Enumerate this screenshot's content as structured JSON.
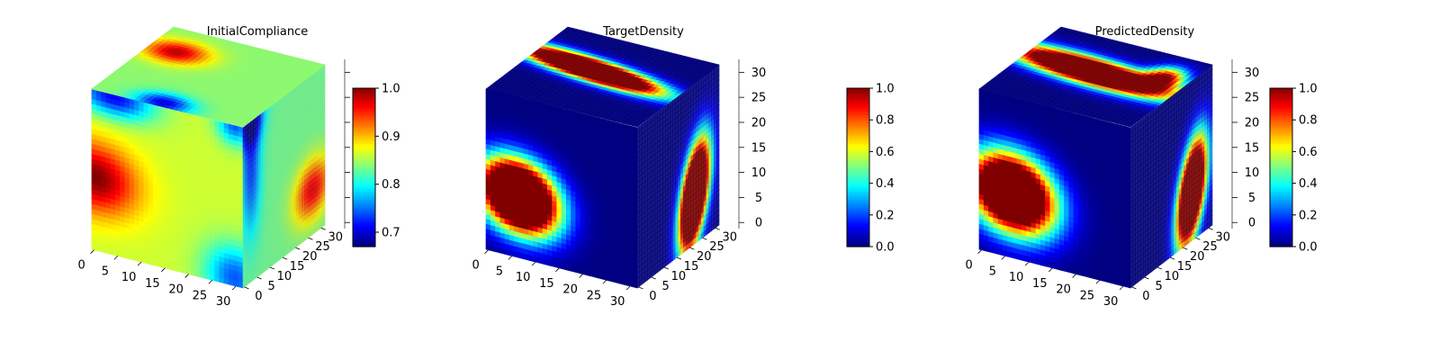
{
  "figure": {
    "background": "#ffffff",
    "colormap": "jet"
  },
  "chart_data": [
    {
      "type": "heatmap",
      "subtype": "3d-voxel-cube",
      "title": "InitialCompliance",
      "grid_size": [
        32,
        32,
        32
      ],
      "x_ticks": [
        "0",
        "5",
        "10",
        "15",
        "20",
        "25",
        "30"
      ],
      "y_ticks": [
        "0",
        "5",
        "10",
        "15",
        "20",
        "25",
        "30"
      ],
      "z_ticks": [],
      "colorbar": {
        "range": [
          0.67,
          1.0
        ],
        "ticks": [
          "0.7",
          "0.8",
          "0.9",
          "1.0"
        ]
      },
      "base_value": 0.83,
      "faces": {
        "front": {
          "base": 0.86,
          "blobs": [
            {
              "u": 0.02,
              "v": 0.55,
              "ru": 0.28,
              "rv": 0.22,
              "amp": 0.14
            },
            {
              "u": 0.15,
              "v": 0.02,
              "ru": 0.25,
              "rv": 0.12,
              "amp": -0.15
            },
            {
              "u": 0.95,
              "v": 0.95,
              "ru": 0.2,
              "rv": 0.2,
              "amp": -0.12
            },
            {
              "u": 0.95,
              "v": 0.0,
              "ru": 0.12,
              "rv": 0.12,
              "amp": -0.12
            }
          ]
        },
        "side": {
          "base": 0.83,
          "blobs": [
            {
              "u": 0.85,
              "v": 0.72,
              "ru": 0.22,
              "rv": 0.18,
              "amp": 0.14
            },
            {
              "u": 0.1,
              "v": 0.3,
              "ru": 0.12,
              "rv": 0.4,
              "amp": -0.1
            },
            {
              "u": 0.1,
              "v": 0.0,
              "ru": 0.15,
              "rv": 0.15,
              "amp": -0.14
            }
          ]
        },
        "top": {
          "base": 0.84,
          "blobs": [
            {
              "u": 0.18,
              "v": 0.3,
              "ru": 0.2,
              "rv": 0.15,
              "amp": 0.14
            },
            {
              "u": 0.45,
              "v": 0.95,
              "ru": 0.18,
              "rv": 0.12,
              "amp": -0.14
            }
          ]
        }
      }
    },
    {
      "type": "heatmap",
      "subtype": "3d-voxel-cube",
      "title": "TargetDensity",
      "grid_size": [
        32,
        32,
        32
      ],
      "x_ticks": [
        "0",
        "5",
        "10",
        "15",
        "20",
        "25",
        "30"
      ],
      "y_ticks": [
        "0",
        "5",
        "10",
        "15",
        "20",
        "25",
        "30"
      ],
      "z_ticks": [
        "0",
        "5",
        "10",
        "15",
        "20",
        "25",
        "30"
      ],
      "colorbar": {
        "range": [
          0.0,
          1.0
        ],
        "ticks": [
          "0.0",
          "0.2",
          "0.4",
          "0.6",
          "0.8",
          "1.0"
        ]
      },
      "base_value": 0.0,
      "faces": {
        "front": {
          "base": 0.0,
          "blobs": [
            {
              "u": 0.22,
              "v": 0.62,
              "ru": 0.24,
              "rv": 0.2,
              "amp": 2.2,
              "rot": 0.25
            }
          ]
        },
        "side": {
          "base": 0.0,
          "blobs": [
            {
              "u": 0.7,
              "v": 0.7,
              "ru": 0.15,
              "rv": 0.3,
              "amp": 2.2,
              "rot": 0.3
            }
          ]
        },
        "top": {
          "base": 0.0,
          "blobs": [
            {
              "u": 0.4,
              "v": 0.45,
              "ru": 0.45,
              "rv": 0.12,
              "amp": 2.2,
              "rot": 0.15
            }
          ]
        }
      }
    },
    {
      "type": "heatmap",
      "subtype": "3d-voxel-cube",
      "title": "PredictedDensity",
      "grid_size": [
        32,
        32,
        32
      ],
      "x_ticks": [
        "0",
        "5",
        "10",
        "15",
        "20",
        "25",
        "30"
      ],
      "y_ticks": [
        "0",
        "5",
        "10",
        "15",
        "20",
        "25",
        "30"
      ],
      "z_ticks": [
        "0",
        "5",
        "10",
        "15",
        "20",
        "25",
        "30"
      ],
      "colorbar": {
        "range": [
          0.0,
          1.0
        ],
        "ticks": [
          "0.0",
          "0.2",
          "0.4",
          "0.6",
          "0.8",
          "1.0"
        ]
      },
      "base_value": 0.0,
      "faces": {
        "front": {
          "base": 0.0,
          "blobs": [
            {
              "u": 0.22,
              "v": 0.6,
              "ru": 0.26,
              "rv": 0.22,
              "amp": 2.0,
              "rot": 0.2
            }
          ]
        },
        "side": {
          "base": 0.0,
          "blobs": [
            {
              "u": 0.75,
              "v": 0.7,
              "ru": 0.15,
              "rv": 0.3,
              "amp": 2.0,
              "rot": 0.3
            }
          ]
        },
        "top": {
          "base": 0.0,
          "blobs": [
            {
              "u": 0.45,
              "v": 0.45,
              "ru": 0.5,
              "rv": 0.15,
              "amp": 2.0,
              "rot": 0.1
            },
            {
              "u": 0.85,
              "v": 0.3,
              "ru": 0.12,
              "rv": 0.15,
              "amp": 0.9
            }
          ]
        }
      }
    }
  ]
}
